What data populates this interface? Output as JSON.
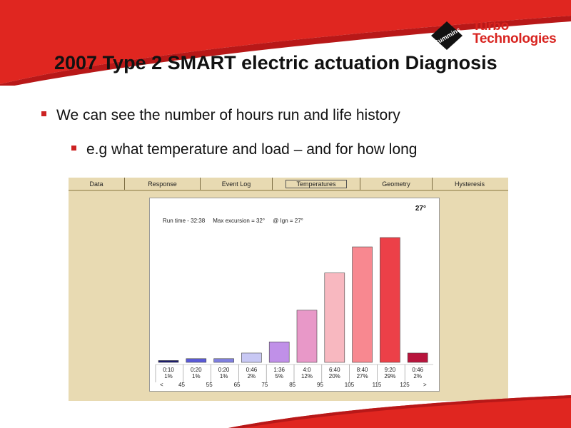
{
  "logo": {
    "line1": "Turbo",
    "line2": "Technologies",
    "brand": "Cummins"
  },
  "title": "2007 Type 2 SMART electric actuation Diagnosis",
  "bullets": [
    "We can see the number of hours run and life history",
    "e.g what temperature and load – and for how long"
  ],
  "tabs": [
    "Data",
    "Response",
    "Event Log",
    "Temperatures",
    "Geometry",
    "Hysteresis"
  ],
  "active_tab": "Temperatures",
  "chart_header": {
    "run_time": "Run time - 32:38",
    "max_excursion": "Max excursion = 32°",
    "ign": "@ Ign = 27°",
    "current_temp": "27°"
  },
  "chart_data": {
    "type": "bar",
    "categories": [
      "0:10",
      "0:20",
      "0:20",
      "0:46",
      "1:36",
      "4:0",
      "6:40",
      "8:40",
      "9:20",
      "0:46"
    ],
    "percent_labels": [
      "1%",
      "1%",
      "1%",
      "2%",
      "5%",
      "12%",
      "20%",
      "27%",
      "29%",
      "2%"
    ],
    "values": [
      1,
      2,
      2,
      5,
      11,
      28,
      48,
      62,
      67,
      5
    ],
    "colors": [
      "#1a1a6e",
      "#5a5ad8",
      "#8080e0",
      "#c8c8f4",
      "#c090e8",
      "#e898c8",
      "#f8b8c0",
      "#f88890",
      "#ec4048",
      "#b8143c"
    ],
    "x_ticks": [
      "<",
      "45",
      "55",
      "65",
      "75",
      "85",
      "95",
      "105",
      "115",
      "125",
      ">"
    ],
    "title": "",
    "xlabel": "",
    "ylabel": ""
  }
}
